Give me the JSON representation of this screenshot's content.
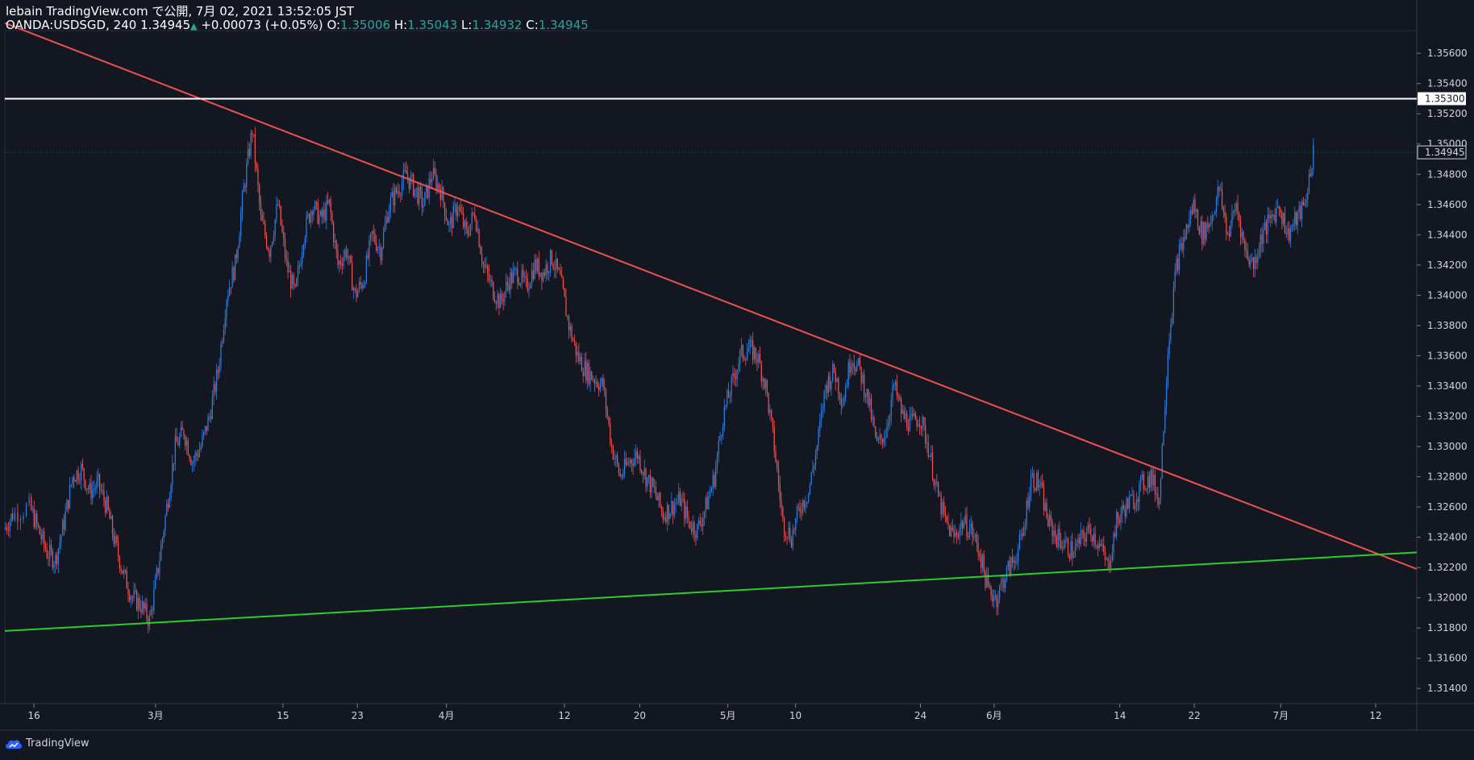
{
  "header": {
    "publisher_line": "lebain TradingView.com で公開, 7月 02, 2021 13:52:05 JST",
    "symbol": "OANDA:USDSGD",
    "interval": "240",
    "last": "1.34945",
    "change": "+0.00073 (+0.05%)",
    "o_label": "O:",
    "o_val": "1.35006",
    "h_label": "H:",
    "h_val": "1.35043",
    "l_label": "L:",
    "l_val": "1.34932",
    "c_label": "C:",
    "c_val": "1.34945"
  },
  "footer": {
    "brand": "TradingView",
    "icon": "tradingview-cloud-icon"
  },
  "colors": {
    "background": "#131722",
    "up_candle": "#2f7fe0",
    "down_candle": "#ef5350",
    "resistance_line": "#f05050",
    "support_line": "#2ecc2e",
    "horizontal_line": "#ffffff",
    "value_text": "#26a69a"
  },
  "chart_data": {
    "type": "candlestick",
    "symbol": "OANDA:USDSGD",
    "interval": "240",
    "ylim": [
      1.313,
      1.3575
    ],
    "y_ticks": [
      1.356,
      1.354,
      1.352,
      1.35,
      1.348,
      1.346,
      1.344,
      1.342,
      1.34,
      1.338,
      1.336,
      1.334,
      1.332,
      1.33,
      1.328,
      1.326,
      1.324,
      1.322,
      1.32,
      1.318,
      1.316,
      1.314
    ],
    "x_ticks": [
      {
        "label": "16",
        "x": 0.4
      },
      {
        "label": "3月",
        "x": 14.6
      },
      {
        "label": "15",
        "x": 29.5
      },
      {
        "label": "23",
        "x": 38.2
      },
      {
        "label": "4月",
        "x": 48.6
      },
      {
        "label": "12",
        "x": 62.4
      },
      {
        "label": "20",
        "x": 71.2
      },
      {
        "label": "5月",
        "x": 81.5
      },
      {
        "label": "10",
        "x": 89.4
      },
      {
        "label": "24",
        "x": 104.0
      },
      {
        "label": "6月",
        "x": 112.6
      },
      {
        "label": "14",
        "x": 127.3
      },
      {
        "label": "22",
        "x": 136.0
      },
      {
        "label": "7月",
        "x": 146.1
      },
      {
        "label": "12",
        "x": 157.2
      }
    ],
    "x_range": [
      -3,
      162
    ],
    "price_labels": {
      "horizontal": "1.35300",
      "last": "1.34945"
    },
    "horizontal_line": 1.353,
    "last_price": 1.34945,
    "resistance_line": {
      "x1": -3,
      "y1": 1.358,
      "x2": 162,
      "y2": 1.3219
    },
    "support_line": {
      "x1": -3,
      "y1": 1.3178,
      "x2": 162,
      "y2": 1.323
    },
    "close_path": [
      [
        -3,
        1.3245
      ],
      [
        -2,
        1.3255
      ],
      [
        0,
        1.326
      ],
      [
        1,
        1.3245
      ],
      [
        2,
        1.323
      ],
      [
        3,
        1.3225
      ],
      [
        4,
        1.325
      ],
      [
        5,
        1.328
      ],
      [
        6,
        1.3285
      ],
      [
        7,
        1.327
      ],
      [
        8,
        1.3275
      ],
      [
        9,
        1.326
      ],
      [
        10,
        1.3235
      ],
      [
        11,
        1.3215
      ],
      [
        12,
        1.32
      ],
      [
        13,
        1.3195
      ],
      [
        14,
        1.3185
      ],
      [
        15,
        1.322
      ],
      [
        16,
        1.326
      ],
      [
        17,
        1.33
      ],
      [
        18,
        1.331
      ],
      [
        19,
        1.329
      ],
      [
        20,
        1.33
      ],
      [
        21,
        1.332
      ],
      [
        22,
        1.335
      ],
      [
        23,
        1.34
      ],
      [
        24,
        1.342
      ],
      [
        25,
        1.347
      ],
      [
        26,
        1.351
      ],
      [
        27,
        1.345
      ],
      [
        28,
        1.343
      ],
      [
        29,
        1.346
      ],
      [
        30,
        1.342
      ],
      [
        31,
        1.34
      ],
      [
        32,
        1.344
      ],
      [
        33,
        1.346
      ],
      [
        34,
        1.345
      ],
      [
        35,
        1.346
      ],
      [
        36,
        1.342
      ],
      [
        37,
        1.343
      ],
      [
        38,
        1.34
      ],
      [
        39,
        1.341
      ],
      [
        40,
        1.344
      ],
      [
        41,
        1.343
      ],
      [
        42,
        1.346
      ],
      [
        43,
        1.347
      ],
      [
        44,
        1.348
      ],
      [
        45,
        1.347
      ],
      [
        46,
        1.346
      ],
      [
        47,
        1.348
      ],
      [
        48,
        1.347
      ],
      [
        49,
        1.3445
      ],
      [
        50,
        1.346
      ],
      [
        51,
        1.344
      ],
      [
        52,
        1.3455
      ],
      [
        53,
        1.342
      ],
      [
        54,
        1.3405
      ],
      [
        55,
        1.3395
      ],
      [
        56,
        1.341
      ],
      [
        57,
        1.3415
      ],
      [
        58,
        1.3405
      ],
      [
        59,
        1.342
      ],
      [
        60,
        1.3415
      ],
      [
        61,
        1.3425
      ],
      [
        62,
        1.341
      ],
      [
        63,
        1.338
      ],
      [
        64,
        1.336
      ],
      [
        65,
        1.335
      ],
      [
        66,
        1.3345
      ],
      [
        67,
        1.334
      ],
      [
        68,
        1.33
      ],
      [
        69,
        1.328
      ],
      [
        70,
        1.329
      ],
      [
        71,
        1.3295
      ],
      [
        72,
        1.328
      ],
      [
        73,
        1.327
      ],
      [
        74,
        1.3255
      ],
      [
        75,
        1.326
      ],
      [
        76,
        1.3265
      ],
      [
        77,
        1.325
      ],
      [
        78,
        1.3245
      ],
      [
        79,
        1.326
      ],
      [
        80,
        1.328
      ],
      [
        81,
        1.332
      ],
      [
        82,
        1.334
      ],
      [
        83,
        1.336
      ],
      [
        84,
        1.3365
      ],
      [
        85,
        1.336
      ],
      [
        86,
        1.334
      ],
      [
        87,
        1.33
      ],
      [
        88,
        1.325
      ],
      [
        89,
        1.324
      ],
      [
        90,
        1.326
      ],
      [
        91,
        1.327
      ],
      [
        92,
        1.33
      ],
      [
        93,
        1.334
      ],
      [
        94,
        1.335
      ],
      [
        95,
        1.333
      ],
      [
        96,
        1.336
      ],
      [
        97,
        1.335
      ],
      [
        98,
        1.333
      ],
      [
        99,
        1.33
      ],
      [
        100,
        1.331
      ],
      [
        101,
        1.334
      ],
      [
        102,
        1.332
      ],
      [
        103,
        1.3315
      ],
      [
        104,
        1.332
      ],
      [
        105,
        1.33
      ],
      [
        106,
        1.327
      ],
      [
        107,
        1.325
      ],
      [
        108,
        1.324
      ],
      [
        109,
        1.325
      ],
      [
        110,
        1.3245
      ],
      [
        111,
        1.323
      ],
      [
        112,
        1.3205
      ],
      [
        113,
        1.32
      ],
      [
        114,
        1.3215
      ],
      [
        115,
        1.3225
      ],
      [
        116,
        1.324
      ],
      [
        117,
        1.328
      ],
      [
        118,
        1.3275
      ],
      [
        119,
        1.325
      ],
      [
        120,
        1.324
      ],
      [
        121,
        1.3235
      ],
      [
        122,
        1.323
      ],
      [
        123,
        1.324
      ],
      [
        124,
        1.3245
      ],
      [
        125,
        1.3235
      ],
      [
        126,
        1.322
      ],
      [
        127,
        1.325
      ],
      [
        128,
        1.326
      ],
      [
        129,
        1.3265
      ],
      [
        130,
        1.3275
      ],
      [
        131,
        1.328
      ],
      [
        132,
        1.3265
      ],
      [
        133,
        1.3365
      ],
      [
        134,
        1.342
      ],
      [
        135,
        1.344
      ],
      [
        136,
        1.346
      ],
      [
        137,
        1.344
      ],
      [
        138,
        1.345
      ],
      [
        139,
        1.347
      ],
      [
        140,
        1.344
      ],
      [
        141,
        1.346
      ],
      [
        142,
        1.343
      ],
      [
        143,
        1.342
      ],
      [
        144,
        1.344
      ],
      [
        145,
        1.345
      ],
      [
        146,
        1.346
      ],
      [
        147,
        1.344
      ],
      [
        148,
        1.345
      ],
      [
        149,
        1.346
      ],
      [
        150,
        1.3495
      ]
    ]
  }
}
